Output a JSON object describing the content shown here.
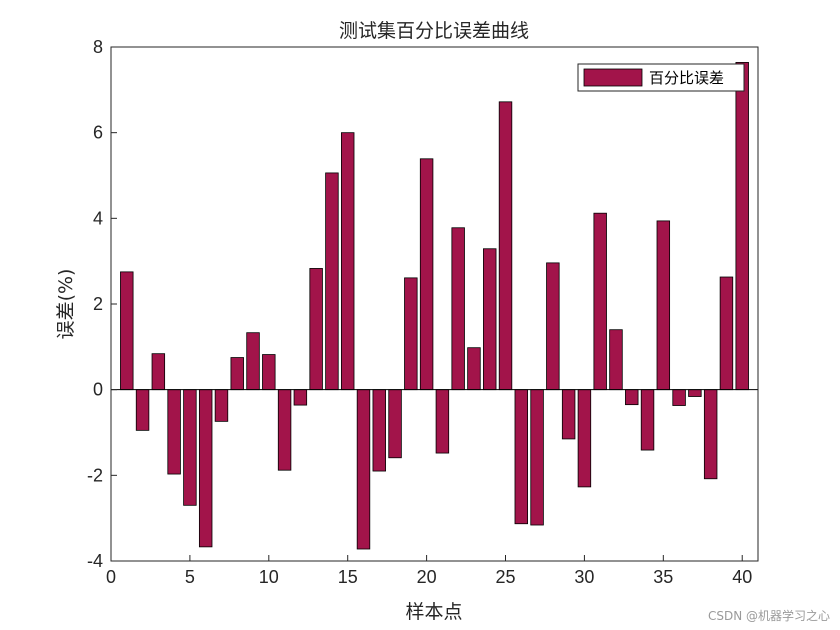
{
  "chart_data": {
    "type": "bar",
    "title": "测试集百分比误差曲线",
    "xlabel": "样本点",
    "ylabel": "误差(%)",
    "xlim": [
      0,
      41
    ],
    "ylim": [
      -4,
      8
    ],
    "xticks": [
      0,
      5,
      10,
      15,
      20,
      25,
      30,
      35,
      40
    ],
    "yticks": [
      -4,
      -2,
      0,
      2,
      4,
      6,
      8
    ],
    "grid": false,
    "legend_position": "top-right",
    "bar_color": "#A2144A",
    "series": [
      {
        "name": "百分比误差",
        "x": [
          1,
          2,
          3,
          4,
          5,
          6,
          7,
          8,
          9,
          10,
          11,
          12,
          13,
          14,
          15,
          16,
          17,
          18,
          19,
          20,
          21,
          22,
          23,
          24,
          25,
          26,
          27,
          28,
          29,
          30,
          31,
          32,
          33,
          34,
          35,
          36,
          37,
          38,
          39,
          40
        ],
        "values": [
          2.75,
          -0.95,
          0.84,
          -1.97,
          -2.7,
          -3.67,
          -0.74,
          0.75,
          1.33,
          0.82,
          -1.88,
          -0.36,
          2.83,
          5.06,
          6.0,
          -3.72,
          -1.9,
          -1.59,
          2.61,
          5.39,
          -1.48,
          3.78,
          0.98,
          3.29,
          6.72,
          -3.13,
          -3.16,
          2.96,
          -1.15,
          -2.27,
          4.12,
          1.4,
          -0.35,
          -1.41,
          3.94,
          -0.37,
          -0.16,
          -2.08,
          2.63,
          7.64
        ]
      }
    ]
  },
  "watermark": "CSDN @机器学习之心"
}
